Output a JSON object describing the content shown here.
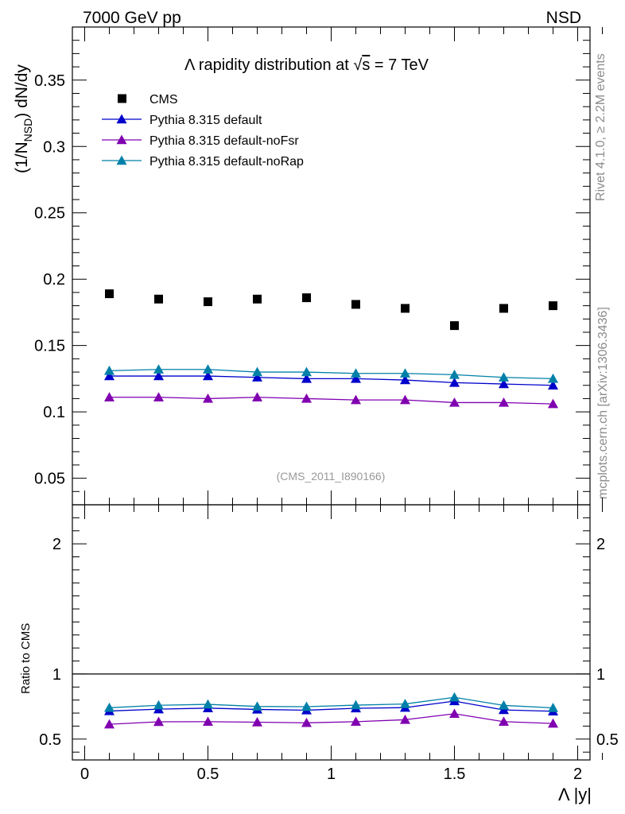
{
  "header": {
    "left": "7000 GeV pp",
    "right": "NSD"
  },
  "side_labels": {
    "rivet": "Rivet 4.1.0, ≥ 2.2M events",
    "mcplots": "mcplots.cern.ch [arXiv:1306.3436]"
  },
  "chart_data": [
    {
      "type": "scatter",
      "title": "Λ rapidity distribution at √s = 7 TeV",
      "title_parts": {
        "pre": "Λ rapidity distribution at ",
        "sqrt": "√",
        "s": "s",
        "post": " = 7 TeV"
      },
      "ylabel": "(1/N_NSD) dN/dy",
      "ylabel_parts": {
        "a": "(1/N",
        "sub": "NSD",
        "b": ") dN/dy"
      },
      "xlabel": "Λ |y|",
      "analysis_tag": "(CMS_2011_I890166)",
      "xlim": [
        -0.05,
        2.05
      ],
      "ylim": [
        0.03,
        0.39
      ],
      "y_ticks": [
        "0.05",
        "0.1",
        "0.15",
        "0.2",
        "0.25",
        "0.3",
        "0.35"
      ],
      "x": [
        0.1,
        0.3,
        0.5,
        0.7,
        0.9,
        1.1,
        1.3,
        1.5,
        1.7,
        1.9
      ],
      "series": [
        {
          "name": "CMS",
          "marker": "square",
          "color": "#000000",
          "values": [
            0.189,
            0.185,
            0.183,
            0.185,
            0.186,
            0.181,
            0.178,
            0.165,
            0.178,
            0.18
          ]
        },
        {
          "name": "Pythia 8.315 default",
          "marker": "triangle",
          "color": "#0000cc",
          "values": [
            0.127,
            0.127,
            0.127,
            0.126,
            0.125,
            0.125,
            0.124,
            0.122,
            0.121,
            0.12
          ]
        },
        {
          "name": "Pythia 8.315 default-noFsr",
          "marker": "triangle",
          "color": "#8000b0",
          "values": [
            0.111,
            0.111,
            0.11,
            0.111,
            0.11,
            0.109,
            0.109,
            0.107,
            0.107,
            0.106
          ]
        },
        {
          "name": "Pythia 8.315 default-noRap",
          "marker": "triangle",
          "color": "#0080a8",
          "values": [
            0.131,
            0.132,
            0.132,
            0.13,
            0.13,
            0.129,
            0.129,
            0.128,
            0.126,
            0.125
          ]
        }
      ]
    },
    {
      "type": "line",
      "ylabel": "Ratio to CMS",
      "xlim": [
        -0.05,
        2.05
      ],
      "ylim": [
        0.34,
        2.3
      ],
      "y_ticks": [
        "0.5",
        "1",
        "2"
      ],
      "x_ticks": [
        "0",
        "0.5",
        "1",
        "1.5",
        "2"
      ],
      "reference": 1.0,
      "x": [
        0.1,
        0.3,
        0.5,
        0.7,
        0.9,
        1.1,
        1.3,
        1.5,
        1.7,
        1.9
      ],
      "series": [
        {
          "name": "Pythia 8.315 default",
          "color": "#0000cc",
          "values": [
            0.716,
            0.73,
            0.738,
            0.728,
            0.722,
            0.737,
            0.742,
            0.792,
            0.724,
            0.714
          ]
        },
        {
          "name": "Pythia 8.315 default-noFsr",
          "color": "#8000b0",
          "values": [
            0.614,
            0.633,
            0.634,
            0.63,
            0.625,
            0.634,
            0.649,
            0.695,
            0.634,
            0.62
          ]
        },
        {
          "name": "Pythia 8.315 default-noRap",
          "color": "#0080a8",
          "values": [
            0.741,
            0.76,
            0.767,
            0.751,
            0.749,
            0.761,
            0.77,
            0.821,
            0.759,
            0.74
          ]
        }
      ]
    }
  ]
}
